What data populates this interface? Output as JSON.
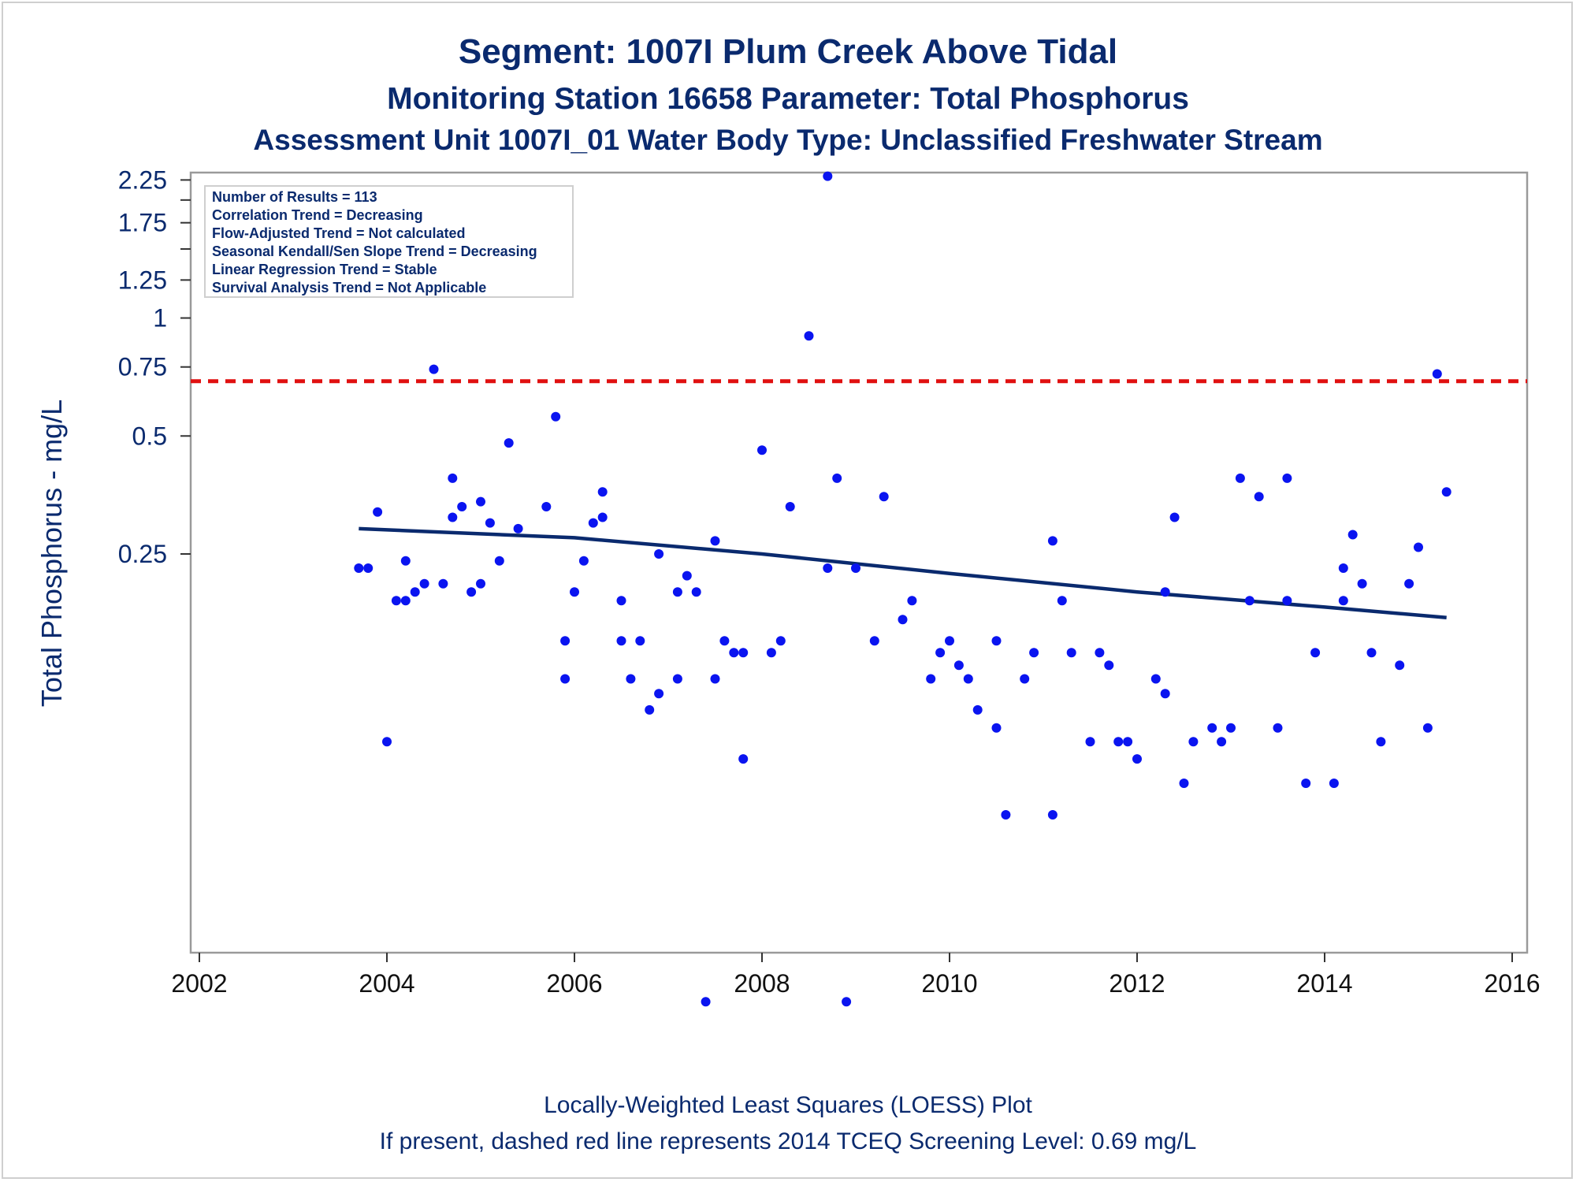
{
  "title": {
    "line1": "Segment: 1007I  Plum Creek Above Tidal",
    "line2": "Monitoring Station 16658 Parameter: Total Phosphorus",
    "line3": "Assessment Unit 1007I_01   Water Body Type: Unclassified Freshwater Stream"
  },
  "stats": [
    "Number of Results = 113",
    "Correlation Trend = Decreasing",
    "Flow-Adjusted Trend = Not calculated",
    "Seasonal Kendall/Sen Slope Trend = Decreasing",
    "Linear Regression Trend = Stable",
    "Survival Analysis Trend = Not Applicable"
  ],
  "footer": {
    "line1": "Locally-Weighted Least Squares (LOESS) Plot",
    "line2": "If present, dashed red line represents 2014 TCEQ Screening Level: 0.69 mg/L"
  },
  "colors": {
    "points": "#0a14f0",
    "loess": "#0a2a6e",
    "screening": "#e01010",
    "text": "#0a2a6e",
    "axis": "#9a9a9a"
  },
  "chart_data": {
    "type": "scatter",
    "ylabel": "Total Phosphorus - mg/L",
    "xlabel": "",
    "yscale": "log",
    "xlim": [
      2002,
      2016
    ],
    "ylim": [
      0.018,
      2.35
    ],
    "xticks": [
      2002,
      2004,
      2006,
      2008,
      2010,
      2012,
      2014,
      2016
    ],
    "yticks": [
      0.25,
      0.5,
      0.75,
      1,
      1.25,
      1.75,
      2.25
    ],
    "yminor_ticks": [
      1.5,
      2.0
    ],
    "screening_level": 0.69,
    "legend": "top-left",
    "points": [
      [
        2003.7,
        0.23
      ],
      [
        2003.8,
        0.23
      ],
      [
        2003.9,
        0.32
      ],
      [
        2004.0,
        0.083
      ],
      [
        2004.1,
        0.19
      ],
      [
        2004.2,
        0.24
      ],
      [
        2004.2,
        0.19
      ],
      [
        2004.3,
        0.2
      ],
      [
        2004.4,
        0.21
      ],
      [
        2004.5,
        0.74
      ],
      [
        2004.6,
        0.21
      ],
      [
        2004.7,
        0.39
      ],
      [
        2004.7,
        0.31
      ],
      [
        2004.8,
        0.33
      ],
      [
        2004.9,
        0.2
      ],
      [
        2005.0,
        0.34
      ],
      [
        2005.0,
        0.21
      ],
      [
        2005.1,
        0.3
      ],
      [
        2005.2,
        0.24
      ],
      [
        2005.3,
        0.48
      ],
      [
        2005.4,
        0.29
      ],
      [
        2005.7,
        0.33
      ],
      [
        2005.8,
        0.56
      ],
      [
        2005.9,
        0.15
      ],
      [
        2005.9,
        0.12
      ],
      [
        2006.0,
        0.2
      ],
      [
        2006.1,
        0.24
      ],
      [
        2006.2,
        0.3
      ],
      [
        2006.3,
        0.36
      ],
      [
        2006.3,
        0.31
      ],
      [
        2006.5,
        0.15
      ],
      [
        2006.5,
        0.19
      ],
      [
        2006.6,
        0.12
      ],
      [
        2006.7,
        0.15
      ],
      [
        2006.8,
        0.1
      ],
      [
        2006.9,
        0.11
      ],
      [
        2006.9,
        0.25
      ],
      [
        2007.1,
        0.2
      ],
      [
        2007.1,
        0.12
      ],
      [
        2007.2,
        0.22
      ],
      [
        2007.3,
        0.2
      ],
      [
        2007.4,
        0.018
      ],
      [
        2007.5,
        0.12
      ],
      [
        2007.5,
        0.27
      ],
      [
        2007.6,
        0.15
      ],
      [
        2007.7,
        0.14
      ],
      [
        2007.8,
        0.14
      ],
      [
        2007.8,
        0.075
      ],
      [
        2008.0,
        0.46
      ],
      [
        2008.1,
        0.14
      ],
      [
        2008.2,
        0.15
      ],
      [
        2008.3,
        0.33
      ],
      [
        2008.5,
        0.9
      ],
      [
        2008.7,
        0.23
      ],
      [
        2008.7,
        2.3
      ],
      [
        2008.8,
        0.39
      ],
      [
        2008.9,
        0.018
      ],
      [
        2009.0,
        0.23
      ],
      [
        2009.2,
        0.15
      ],
      [
        2009.3,
        0.35
      ],
      [
        2009.5,
        0.17
      ],
      [
        2009.6,
        0.19
      ],
      [
        2009.8,
        0.12
      ],
      [
        2009.9,
        0.14
      ],
      [
        2010.0,
        0.15
      ],
      [
        2010.1,
        0.13
      ],
      [
        2010.2,
        0.12
      ],
      [
        2010.3,
        0.1
      ],
      [
        2010.5,
        0.09
      ],
      [
        2010.5,
        0.15
      ],
      [
        2010.6,
        0.054
      ],
      [
        2010.8,
        0.12
      ],
      [
        2010.9,
        0.14
      ],
      [
        2011.1,
        0.27
      ],
      [
        2011.1,
        0.054
      ],
      [
        2011.2,
        0.19
      ],
      [
        2011.3,
        0.14
      ],
      [
        2011.5,
        0.083
      ],
      [
        2011.6,
        0.14
      ],
      [
        2011.7,
        0.13
      ],
      [
        2011.8,
        0.083
      ],
      [
        2011.9,
        0.083
      ],
      [
        2012.0,
        0.075
      ],
      [
        2012.2,
        0.12
      ],
      [
        2012.3,
        0.2
      ],
      [
        2012.3,
        0.11
      ],
      [
        2012.4,
        0.31
      ],
      [
        2012.5,
        0.065
      ],
      [
        2012.6,
        0.083
      ],
      [
        2012.8,
        0.09
      ],
      [
        2012.9,
        0.083
      ],
      [
        2013.0,
        0.09
      ],
      [
        2013.1,
        0.39
      ],
      [
        2013.2,
        0.19
      ],
      [
        2013.3,
        0.35
      ],
      [
        2013.5,
        0.09
      ],
      [
        2013.6,
        0.19
      ],
      [
        2013.6,
        0.39
      ],
      [
        2013.8,
        0.065
      ],
      [
        2013.9,
        0.14
      ],
      [
        2014.1,
        0.065
      ],
      [
        2014.2,
        0.23
      ],
      [
        2014.2,
        0.19
      ],
      [
        2014.3,
        0.28
      ],
      [
        2014.4,
        0.21
      ],
      [
        2014.5,
        0.14
      ],
      [
        2014.6,
        0.083
      ],
      [
        2014.8,
        0.13
      ],
      [
        2014.9,
        0.21
      ],
      [
        2015.0,
        0.26
      ],
      [
        2015.1,
        0.09
      ],
      [
        2015.2,
        0.72
      ],
      [
        2015.3,
        0.36
      ]
    ],
    "loess": [
      [
        2003.7,
        0.29
      ],
      [
        2006,
        0.275
      ],
      [
        2008,
        0.25
      ],
      [
        2010,
        0.223
      ],
      [
        2012,
        0.2
      ],
      [
        2014,
        0.183
      ],
      [
        2015.3,
        0.172
      ]
    ]
  }
}
